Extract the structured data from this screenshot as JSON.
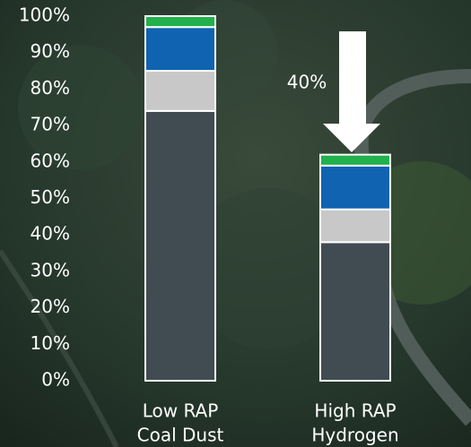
{
  "chart_data": {
    "type": "stacked_bar",
    "categories": [
      [
        "Low RAP",
        "Coal Dust"
      ],
      [
        "High RAP",
        "Hydrogen"
      ]
    ],
    "series": [
      {
        "color": "#414c52",
        "values": [
          74,
          38
        ]
      },
      {
        "color": "#c8c8c8",
        "values": [
          11,
          9
        ]
      },
      {
        "color": "#0f63b0",
        "values": [
          12,
          12
        ]
      },
      {
        "color": "#22b14c",
        "values": [
          3,
          3
        ]
      }
    ],
    "ylim": [
      0,
      100
    ],
    "yticks": [
      {
        "value": 0,
        "label": "0%"
      },
      {
        "value": 10,
        "label": "10%"
      },
      {
        "value": 20,
        "label": "20%"
      },
      {
        "value": 30,
        "label": "30%"
      },
      {
        "value": 40,
        "label": "40%"
      },
      {
        "value": 50,
        "label": "50%"
      },
      {
        "value": 60,
        "label": "60%"
      },
      {
        "value": 70,
        "label": "70%"
      },
      {
        "value": 80,
        "label": "80%"
      },
      {
        "value": 90,
        "label": "90%"
      },
      {
        "value": 100,
        "label": "100%"
      }
    ],
    "grid": false,
    "annotation": "40%"
  }
}
